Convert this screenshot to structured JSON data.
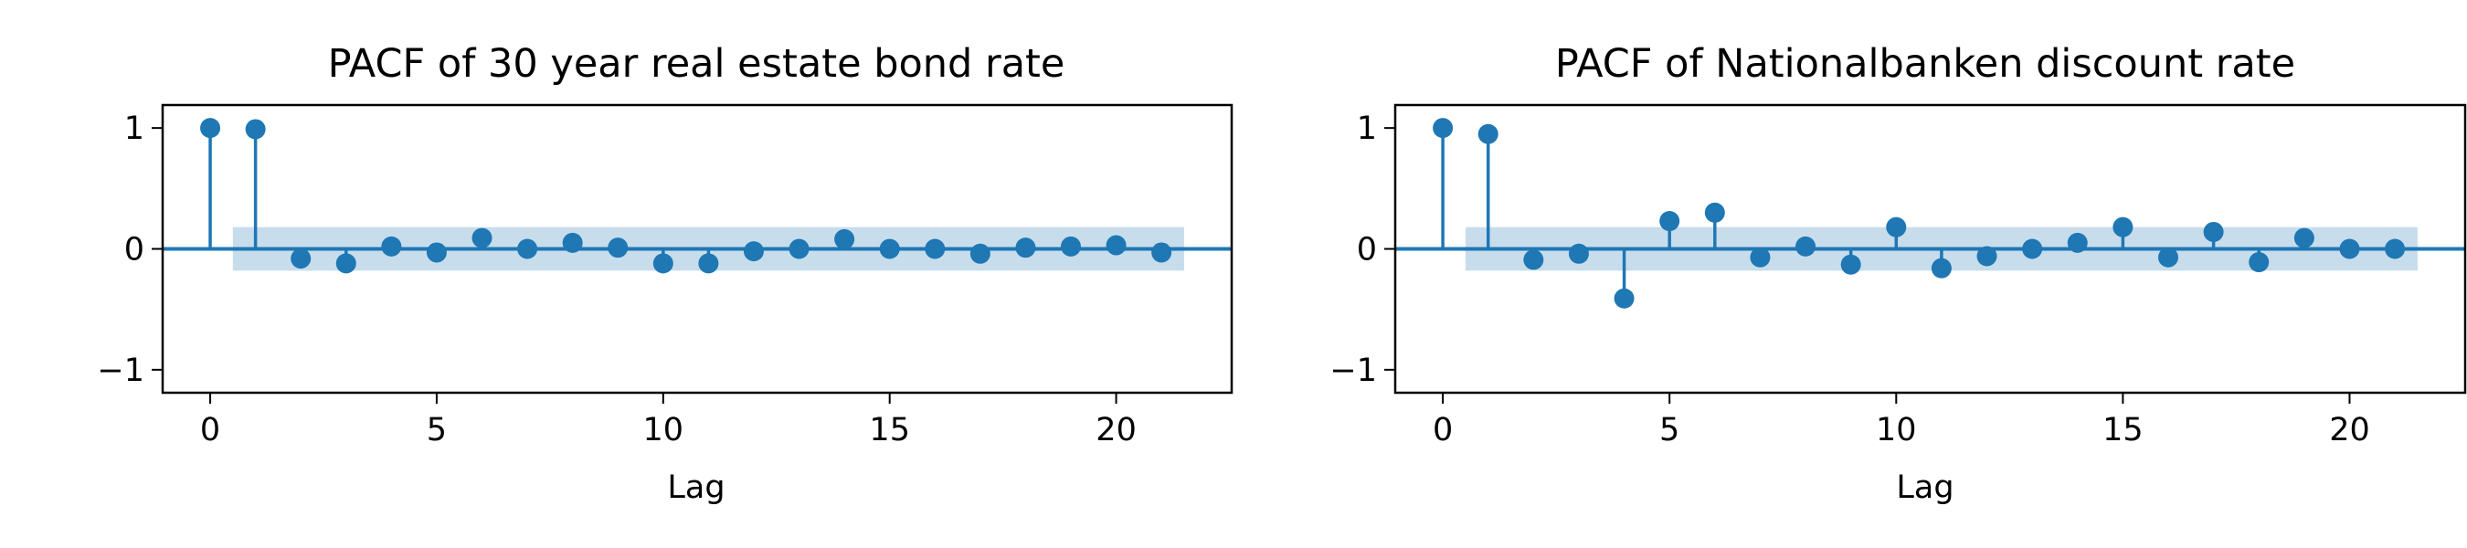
{
  "colors": {
    "stem": "#1f77b4",
    "band": "#1f77b4",
    "band_opacity": 0.25,
    "axes": "#000000",
    "background": "#ffffff"
  },
  "chart_data": [
    {
      "type": "stem",
      "title": "PACF of 30 year real estate bond rate",
      "xlabel": "Lag",
      "ylabel": "",
      "xlim": [
        -1.05,
        22.55
      ],
      "ylim": [
        -1.19,
        1.19
      ],
      "xticks": [
        0,
        5,
        10,
        15,
        20
      ],
      "yticks": [
        -1,
        0,
        1
      ],
      "ytick_labels": [
        "−1",
        "0",
        "1"
      ],
      "grid": false,
      "confidence_band": {
        "x_from": 0.5,
        "x_to": 21.5,
        "halfwidth": 0.18
      },
      "lags": [
        0,
        1,
        2,
        3,
        4,
        5,
        6,
        7,
        8,
        9,
        10,
        11,
        12,
        13,
        14,
        15,
        16,
        17,
        18,
        19,
        20,
        21
      ],
      "values": [
        1.0,
        0.99,
        -0.08,
        -0.12,
        0.02,
        -0.03,
        0.09,
        0.0,
        0.05,
        0.01,
        -0.12,
        -0.12,
        -0.02,
        0.0,
        0.08,
        0.0,
        0.0,
        -0.04,
        0.01,
        0.02,
        0.03,
        -0.03
      ]
    },
    {
      "type": "stem",
      "title": "PACF of Nationalbanken discount rate",
      "xlabel": "Lag",
      "ylabel": "",
      "xlim": [
        -1.05,
        22.55
      ],
      "ylim": [
        -1.19,
        1.19
      ],
      "xticks": [
        0,
        5,
        10,
        15,
        20
      ],
      "yticks": [
        -1,
        0,
        1
      ],
      "ytick_labels": [
        "−1",
        "0",
        "1"
      ],
      "grid": false,
      "confidence_band": {
        "x_from": 0.5,
        "x_to": 21.5,
        "halfwidth": 0.18
      },
      "lags": [
        0,
        1,
        2,
        3,
        4,
        5,
        6,
        7,
        8,
        9,
        10,
        11,
        12,
        13,
        14,
        15,
        16,
        17,
        18,
        19,
        20,
        21
      ],
      "values": [
        1.0,
        0.95,
        -0.09,
        -0.04,
        -0.41,
        0.23,
        0.3,
        -0.07,
        0.02,
        -0.13,
        0.18,
        -0.16,
        -0.06,
        0.0,
        0.05,
        0.18,
        -0.07,
        0.14,
        -0.11,
        0.09,
        0.0,
        0.0
      ]
    }
  ]
}
